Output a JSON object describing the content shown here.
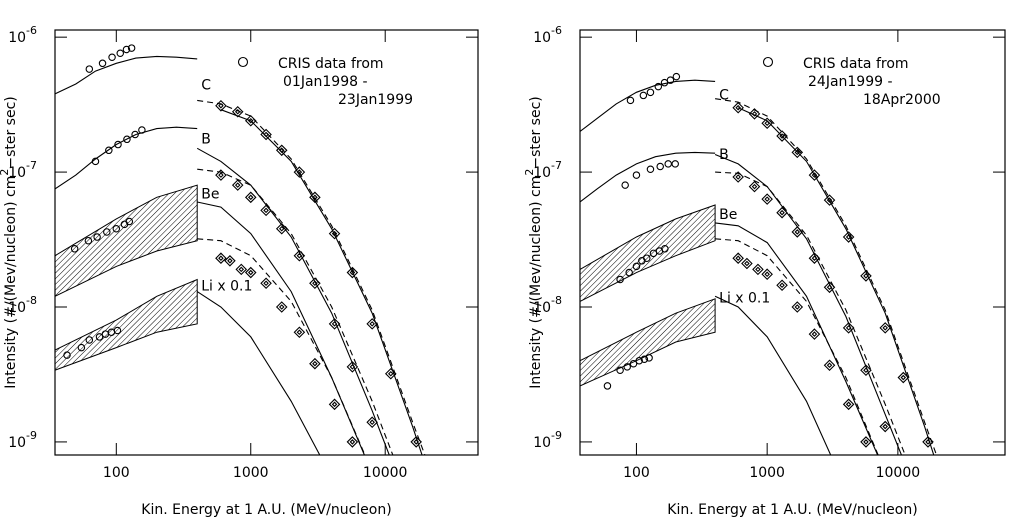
{
  "chart_data": [
    {
      "type": "line",
      "xscale": "log",
      "yscale": "log",
      "xlabel": "Kin. Energy at 1 A.U. (MeV/nucleon)",
      "ylabel": [
        "Intensity  (#/(Mev/nucleon) cm",
        "2",
        "−ster sec)"
      ],
      "legend": [
        "CRIS data from",
        "01Jan1998 -",
        "23Jan1999"
      ],
      "xlim": [
        35,
        49000
      ],
      "ylim": [
        8e-10,
        1.13e-06
      ],
      "xticks": [
        100,
        1000,
        10000
      ],
      "yticks": [
        {
          "value": 1e-09,
          "label": "10",
          "exponent": "-9"
        },
        {
          "value": 1e-08,
          "label": "10",
          "exponent": "-8"
        },
        {
          "value": 1e-07,
          "label": "10",
          "exponent": "-7"
        },
        {
          "value": 1e-06,
          "label": "10",
          "exponent": "-6"
        }
      ],
      "elements": [
        {
          "label": "C",
          "low": {
            "x": [
              35,
              50,
              70,
              100,
              140,
              200,
              280,
              400
            ],
            "y": [
              3.8e-07,
              4.5e-07,
              5.6e-07,
              6.4e-07,
              7e-07,
              7.2e-07,
              7.1e-07,
              6.9e-07
            ]
          },
          "solid": {
            "x": [
              600,
              1000,
              2000,
              4000,
              8000,
              16000,
              22000
            ],
            "y": [
              2.9e-07,
              2.4e-07,
              1.2e-07,
              3.8e-08,
              9e-09,
              1.3e-09,
              5e-10
            ]
          },
          "dashed": {
            "x": [
              400,
              600,
              1000,
              2000,
              4000,
              8000,
              16000,
              22000
            ],
            "y": [
              3.4e-07,
              3.2e-07,
              2.6e-07,
              1.25e-07,
              4e-08,
              9.5e-09,
              1.4e-09,
              6e-10
            ]
          },
          "cris": {
            "x": [
              63,
              79,
              93,
              107,
              119,
              130
            ],
            "y": [
              5.8e-07,
              6.4e-07,
              7.1e-07,
              7.6e-07,
              8.1e-07,
              8.3e-07
            ]
          },
          "heao": {
            "x": [
              600,
              800,
              1000,
              1300,
              1700,
              2300,
              3000,
              4200,
              5700,
              8000,
              11000,
              17000
            ],
            "y": [
              3.1e-07,
              2.8e-07,
              2.4e-07,
              1.9e-07,
              1.45e-07,
              1e-07,
              6.5e-08,
              3.5e-08,
              1.8e-08,
              7.5e-09,
              3.2e-09,
              1e-09
            ]
          }
        },
        {
          "label": "B",
          "low": {
            "x": [
              35,
              50,
              70,
              100,
              140,
              200,
              280,
              400
            ],
            "y": [
              7.5e-08,
              9.5e-08,
              1.25e-07,
              1.6e-07,
              1.9e-07,
              2.1e-07,
              2.15e-07,
              2.1e-07
            ]
          },
          "solid": {
            "x": [
              400,
              600,
              1000,
              2000,
              4000,
              8000,
              12000
            ],
            "y": [
              1.5e-07,
              1.2e-07,
              8e-08,
              3.3e-08,
              9e-09,
              1.7e-09,
              6e-10
            ]
          },
          "dashed": {
            "x": [
              400,
              600,
              1000,
              2000,
              4000,
              8000,
              12000
            ],
            "y": [
              1.05e-07,
              1e-07,
              8e-08,
              3.5e-08,
              1e-08,
              2e-09,
              7e-10
            ]
          },
          "cris": {
            "x": [
              70,
              88,
              103,
              120,
              138,
              155
            ],
            "y": [
              1.2e-07,
              1.45e-07,
              1.6e-07,
              1.75e-07,
              1.9e-07,
              2.05e-07
            ]
          },
          "heao": {
            "x": [
              600,
              800,
              1000,
              1300,
              1700,
              2300,
              3000,
              4200,
              5700,
              8000
            ],
            "y": [
              9.5e-08,
              8e-08,
              6.5e-08,
              5.2e-08,
              3.8e-08,
              2.4e-08,
              1.5e-08,
              7.5e-09,
              3.6e-09,
              1.4e-09
            ]
          }
        },
        {
          "label": "Be",
          "band": {
            "x": [
              35,
              100,
              200,
              400
            ],
            "upper": [
              2.4e-08,
              4.5e-08,
              6.5e-08,
              8e-08
            ],
            "lower": [
              1.2e-08,
              2e-08,
              2.6e-08,
              3.1e-08
            ]
          },
          "solid": {
            "x": [
              400,
              600,
              1000,
              2000,
              4000,
              7000
            ],
            "y": [
              6e-08,
              5.5e-08,
              3.5e-08,
              1.3e-08,
              3e-09,
              8e-10
            ]
          },
          "dashed": {
            "x": [
              400,
              600,
              1000,
              2000,
              4000,
              8000
            ],
            "y": [
              3.2e-08,
              3.1e-08,
              2.4e-08,
              1.1e-08,
              3e-09,
              6e-10
            ]
          },
          "cris": {
            "x": [
              49,
              62,
              72,
              85,
              100,
              115,
              125
            ],
            "y": [
              2.7e-08,
              3.1e-08,
              3.3e-08,
              3.6e-08,
              3.8e-08,
              4.1e-08,
              4.3e-08
            ]
          },
          "heao": {
            "x": [
              600,
              700,
              850,
              1000,
              1300,
              1700,
              2300,
              3000,
              4200,
              5700
            ],
            "y": [
              2.3e-08,
              2.2e-08,
              1.9e-08,
              1.8e-08,
              1.5e-08,
              1e-08,
              6.5e-09,
              3.8e-09,
              1.9e-09,
              1e-09
            ]
          }
        },
        {
          "label": "Li x 0.1",
          "band": {
            "x": [
              35,
              100,
              200,
              400
            ],
            "upper": [
              4.8e-09,
              8e-09,
              1.2e-08,
              1.6e-08
            ],
            "lower": [
              3.4e-09,
              5e-09,
              6.5e-09,
              7.5e-09
            ]
          },
          "solid": {
            "x": [
              400,
              600,
              1000,
              2000,
              3500
            ],
            "y": [
              1.3e-08,
              1e-08,
              6e-09,
              2e-09,
              7e-10
            ]
          },
          "cris": {
            "x": [
              43,
              55,
              63,
              75,
              83,
              92,
              102
            ],
            "y": [
              4.4e-09,
              5e-09,
              5.7e-09,
              6e-09,
              6.3e-09,
              6.5e-09,
              6.7e-09
            ]
          }
        }
      ]
    },
    {
      "type": "line",
      "xscale": "log",
      "yscale": "log",
      "xlabel": "Kin. Energy at 1 A.U. (MeV/nucleon)",
      "ylabel": [
        "Intensity  (#/(Mev/nucleon) cm",
        "2",
        "−ster sec)"
      ],
      "legend": [
        "CRIS data from",
        "24Jan1999 -",
        "18Apr2000"
      ],
      "xlim": [
        37,
        66000
      ],
      "ylim": [
        8e-10,
        1.13e-06
      ],
      "xticks": [
        100,
        1000,
        10000
      ],
      "yticks": [
        {
          "value": 1e-09,
          "label": "10",
          "exponent": "-9"
        },
        {
          "value": 1e-08,
          "label": "10",
          "exponent": "-8"
        },
        {
          "value": 1e-07,
          "label": "10",
          "exponent": "-7"
        },
        {
          "value": 1e-06,
          "label": "10",
          "exponent": "-6"
        }
      ],
      "elements": [
        {
          "label": "C",
          "low": {
            "x": [
              37,
              50,
              70,
              100,
              140,
              200,
              280,
              400
            ],
            "y": [
              2e-07,
              2.5e-07,
              3.2e-07,
              3.9e-07,
              4.4e-07,
              4.7e-07,
              4.8e-07,
              4.7e-07
            ]
          },
          "solid": {
            "x": [
              600,
              1000,
              2000,
              4000,
              8000,
              16000,
              22000
            ],
            "y": [
              3e-07,
              2.4e-07,
              1.2e-07,
              3.8e-08,
              9e-09,
              1.3e-09,
              5e-10
            ]
          },
          "dashed": {
            "x": [
              400,
              600,
              1000,
              2000,
              4000,
              8000,
              16000,
              22000
            ],
            "y": [
              3.5e-07,
              3.3e-07,
              2.6e-07,
              1.25e-07,
              4e-08,
              9.5e-09,
              1.4e-09,
              6e-10
            ]
          },
          "cris": {
            "x": [
              90,
              113,
              128,
              147,
              164,
              182,
              202
            ],
            "y": [
              3.4e-07,
              3.7e-07,
              3.9e-07,
              4.3e-07,
              4.6e-07,
              4.8e-07,
              5.1e-07
            ]
          },
          "heao": {
            "x": [
              600,
              800,
              1000,
              1300,
              1700,
              2300,
              3000,
              4200,
              5700,
              8000,
              11000,
              17000
            ],
            "y": [
              3e-07,
              2.7e-07,
              2.3e-07,
              1.85e-07,
              1.4e-07,
              9.5e-08,
              6.2e-08,
              3.3e-08,
              1.7e-08,
              7e-09,
              3e-09,
              1e-09
            ]
          }
        },
        {
          "label": "B",
          "low": {
            "x": [
              37,
              50,
              70,
              100,
              140,
              200,
              280,
              400
            ],
            "y": [
              6e-08,
              7.5e-08,
              9.5e-08,
              1.15e-07,
              1.3e-07,
              1.38e-07,
              1.4e-07,
              1.38e-07
            ]
          },
          "solid": {
            "x": [
              400,
              600,
              1000,
              2000,
              4000,
              8000,
              12000
            ],
            "y": [
              1.35e-07,
              1.15e-07,
              7.8e-08,
              3.2e-08,
              8.5e-09,
              1.6e-09,
              6e-10
            ]
          },
          "dashed": {
            "x": [
              400,
              600,
              1000,
              2000,
              4000,
              8000,
              12000
            ],
            "y": [
              1e-07,
              9.8e-08,
              7.8e-08,
              3.4e-08,
              9.5e-09,
              1.9e-09,
              7e-10
            ]
          },
          "cris": {
            "x": [
              82,
              100,
              128,
              152,
              175,
              198
            ],
            "y": [
              8e-08,
              9.5e-08,
              1.05e-07,
              1.1e-07,
              1.15e-07,
              1.15e-07
            ]
          },
          "heao": {
            "x": [
              600,
              800,
              1000,
              1300,
              1700,
              2300,
              3000,
              4200,
              5700,
              8000
            ],
            "y": [
              9.2e-08,
              7.8e-08,
              6.3e-08,
              5e-08,
              3.6e-08,
              2.3e-08,
              1.4e-08,
              7e-09,
              3.4e-09,
              1.3e-09
            ]
          }
        },
        {
          "label": "Be",
          "band": {
            "x": [
              37,
              100,
              200,
              400
            ],
            "upper": [
              1.9e-08,
              3.3e-08,
              4.5e-08,
              5.7e-08
            ],
            "lower": [
              1.1e-08,
              1.8e-08,
              2.4e-08,
              3.1e-08
            ]
          },
          "solid": {
            "x": [
              400,
              600,
              1000,
              2000,
              4000,
              7000
            ],
            "y": [
              4.2e-08,
              4e-08,
              3e-08,
              1.2e-08,
              2.8e-09,
              8e-10
            ]
          },
          "dashed": {
            "x": [
              400,
              600,
              1000,
              2000,
              4000,
              8000
            ],
            "y": [
              3.2e-08,
              3.1e-08,
              2.4e-08,
              1.1e-08,
              3e-09,
              6e-10
            ]
          },
          "cris": {
            "x": [
              75,
              88,
              100,
              110,
              120,
              135,
              150,
              165
            ],
            "y": [
              1.6e-08,
              1.8e-08,
              2e-08,
              2.2e-08,
              2.3e-08,
              2.5e-08,
              2.6e-08,
              2.7e-08
            ]
          },
          "heao": {
            "x": [
              600,
              700,
              850,
              1000,
              1300,
              1700,
              2300,
              3000,
              4200,
              5700
            ],
            "y": [
              2.3e-08,
              2.1e-08,
              1.9e-08,
              1.75e-08,
              1.45e-08,
              1e-08,
              6.3e-09,
              3.7e-09,
              1.9e-09,
              1e-09
            ]
          }
        },
        {
          "label": "Li x 0.1",
          "band": {
            "x": [
              37,
              100,
              200,
              400
            ],
            "upper": [
              4e-09,
              6.5e-09,
              9e-09,
              1.15e-08
            ],
            "lower": [
              2.6e-09,
              4e-09,
              5.5e-09,
              6.5e-09
            ]
          },
          "solid": {
            "x": [
              400,
              600,
              1000,
              2000,
              3500
            ],
            "y": [
              1.2e-08,
              1e-08,
              6e-09,
              2e-09,
              6e-10
            ]
          },
          "cris": {
            "x": [
              60,
              75,
              85,
              95,
              105,
              115,
              125
            ],
            "y": [
              2.6e-09,
              3.4e-09,
              3.6e-09,
              3.8e-09,
              4e-09,
              4.1e-09,
              4.2e-09
            ]
          }
        }
      ]
    }
  ]
}
